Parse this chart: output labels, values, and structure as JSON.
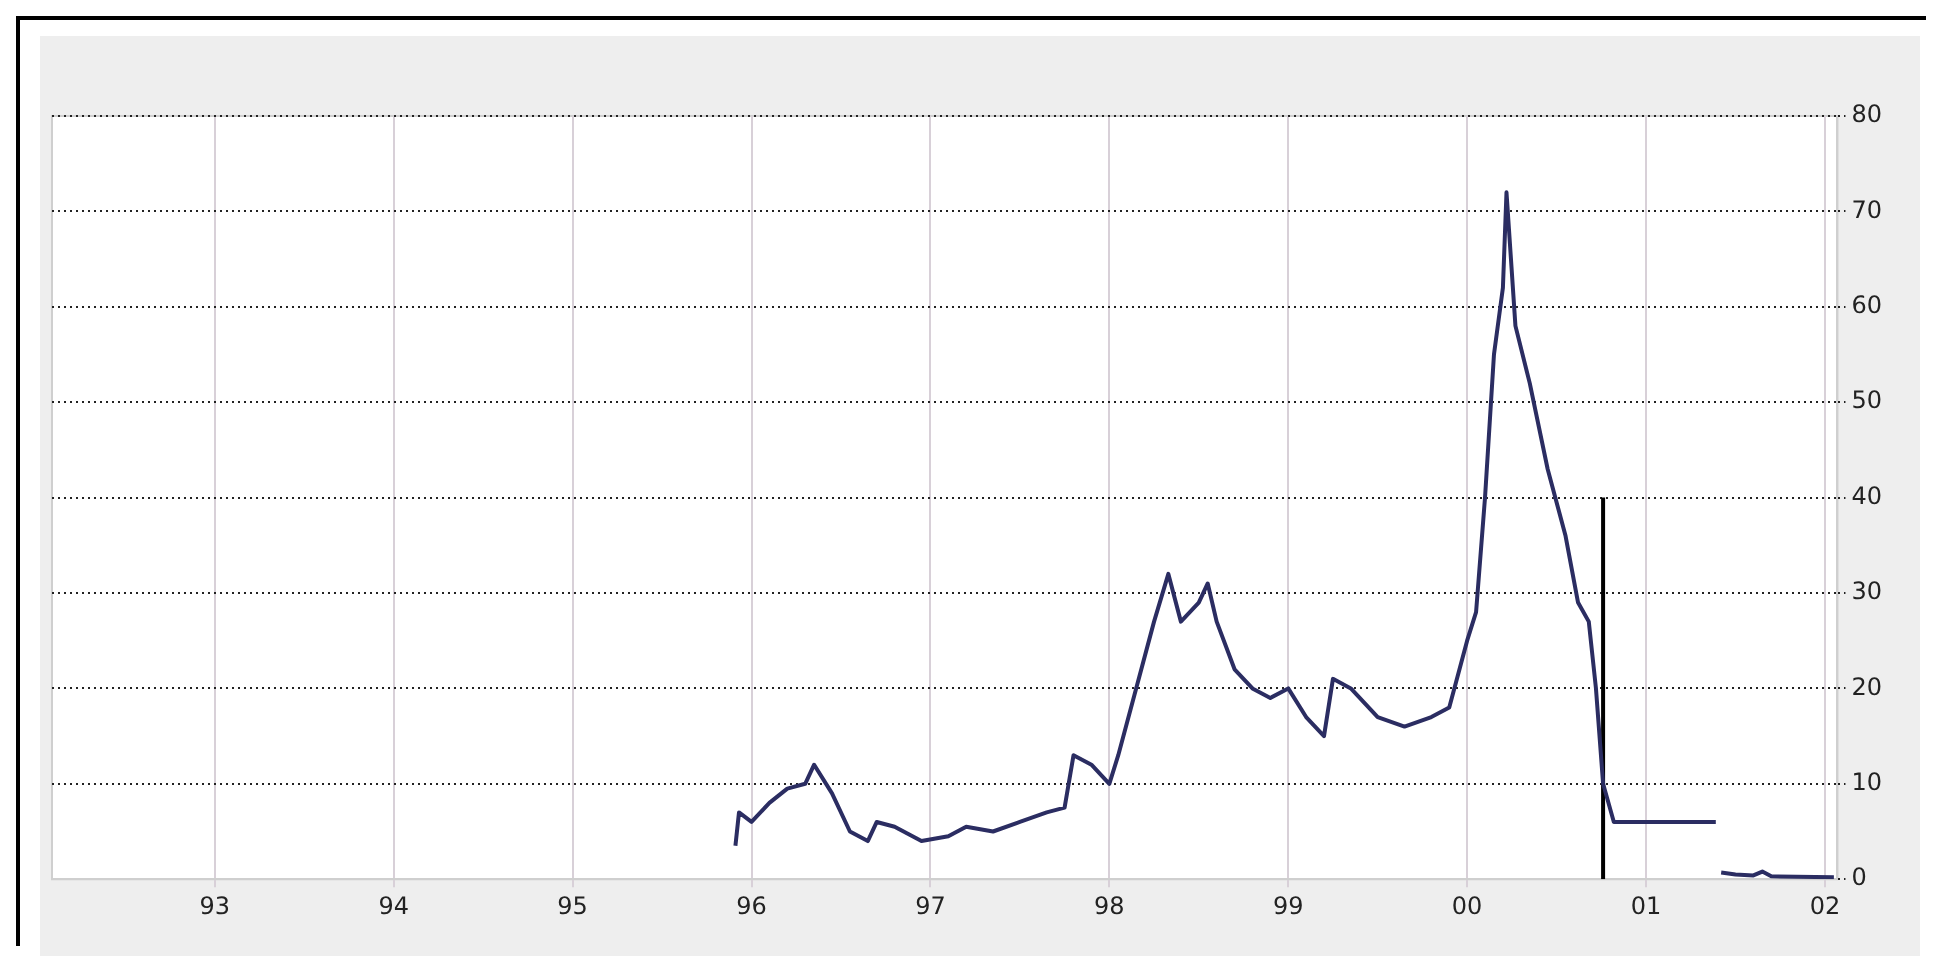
{
  "chart_data": {
    "type": "line",
    "xlim": [
      1992.09,
      2002.07
    ],
    "ylim": [
      0,
      80
    ],
    "xticks": [
      {
        "value": 1993,
        "label": "93"
      },
      {
        "value": 1994,
        "label": "94"
      },
      {
        "value": 1995,
        "label": "95"
      },
      {
        "value": 1996,
        "label": "96"
      },
      {
        "value": 1997,
        "label": "97"
      },
      {
        "value": 1998,
        "label": "98"
      },
      {
        "value": 1999,
        "label": "99"
      },
      {
        "value": 2000,
        "label": "00"
      },
      {
        "value": 2001,
        "label": "01"
      },
      {
        "value": 2002,
        "label": "02"
      }
    ],
    "yticks": [
      0,
      10,
      20,
      30,
      40,
      50,
      60,
      70,
      80
    ],
    "grid": true,
    "legend": false,
    "marker": "none",
    "line_style": "solid",
    "series": [
      {
        "color": "#2b2d62",
        "x": [
          1995.91,
          1995.93,
          1996.0,
          1996.1,
          1996.2,
          1996.3,
          1996.35,
          1996.45,
          1996.55,
          1996.65,
          1996.7,
          1996.8,
          1996.95,
          1997.1,
          1997.2,
          1997.35,
          1997.5,
          1997.65,
          1997.75,
          1997.8,
          1997.9,
          1998.0,
          1998.05,
          1998.15,
          1998.25,
          1998.33,
          1998.4,
          1998.5,
          1998.55,
          1998.6,
          1998.7,
          1998.8,
          1998.9,
          1999.0,
          1999.1,
          1999.2,
          1999.25,
          1999.35,
          1999.5,
          1999.65,
          1999.8,
          1999.9,
          2000.0,
          2000.05,
          2000.1,
          2000.15,
          2000.2,
          2000.22,
          2000.27,
          2000.35,
          2000.45,
          2000.55,
          2000.62,
          2000.68,
          2000.72,
          2000.74,
          2000.76,
          2000.82,
          2000.85,
          2001.39,
          2001.4,
          2001.42,
          2001.5,
          2001.6,
          2001.65,
          2001.7,
          2002.05
        ],
        "values": [
          3.5,
          7,
          6,
          8,
          9.5,
          10,
          12,
          9,
          5,
          4,
          6,
          5.5,
          4,
          4.5,
          5.5,
          5,
          6,
          7,
          7.5,
          13,
          12,
          10,
          13,
          20,
          27,
          32,
          27,
          29,
          31,
          27,
          22,
          20,
          19,
          20,
          17,
          15,
          21,
          20,
          17,
          16,
          17,
          18,
          25,
          28,
          40,
          55,
          62,
          72,
          58,
          52,
          43,
          36,
          29,
          27,
          20,
          15,
          10,
          6,
          6,
          6,
          null,
          0.7,
          0.5,
          0.4,
          0.8,
          0.3,
          0.2
        ]
      },
      {
        "color": "#000000",
        "x": [
          2000.76,
          2000.76
        ],
        "values": [
          0,
          40
        ]
      }
    ]
  }
}
